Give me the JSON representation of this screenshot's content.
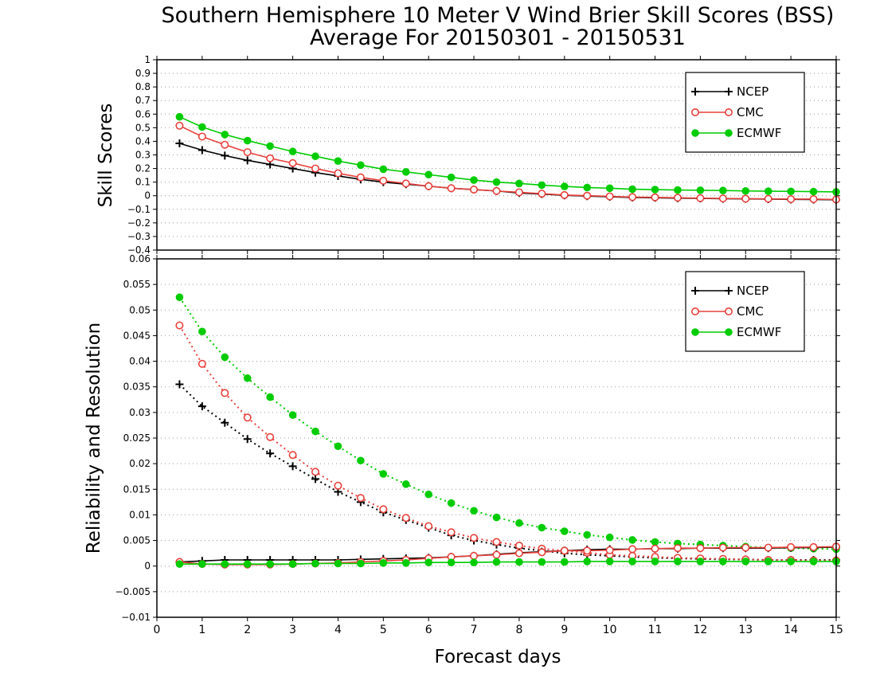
{
  "chart_data": {
    "title": "Southern Hemisphere 10 Meter V Wind Brier Skill Scores (BSS)",
    "subtitle": "Average For 20150301 - 20150531",
    "xlabel": "Forecast days",
    "xlim": [
      0,
      15
    ],
    "x_ticks": [
      "0",
      "1",
      "2",
      "3",
      "4",
      "5",
      "6",
      "7",
      "8",
      "9",
      "10",
      "11",
      "12",
      "13",
      "14",
      "15"
    ],
    "x": [
      0.5,
      1,
      1.5,
      2,
      2.5,
      3,
      3.5,
      4,
      4.5,
      5,
      5.5,
      6,
      6.5,
      7,
      7.5,
      8,
      8.5,
      9,
      9.5,
      10,
      10.5,
      11,
      11.5,
      12,
      12.5,
      13,
      13.5,
      14,
      14.5,
      15
    ],
    "colors": {
      "NCEP": "#000000",
      "CMC": "#e8413c",
      "ECMWF": "#00cc00"
    },
    "panels": [
      {
        "type": "line",
        "ylabel": "Skill Scores",
        "ylim": [
          -0.4,
          1
        ],
        "y_ticks": [
          "−0.4",
          "−0.3",
          "−0.2",
          "−0.1",
          "0",
          "0.1",
          "0.2",
          "0.3",
          "0.4",
          "0.5",
          "0.6",
          "0.7",
          "0.8",
          "0.9",
          "1"
        ],
        "legend": [
          "NCEP",
          "CMC",
          "ECMWF"
        ],
        "legend_position": "top-right",
        "grid": true,
        "series": [
          {
            "name": "NCEP",
            "marker": "plus",
            "style": "solid",
            "values": [
              0.385,
              0.335,
              0.295,
              0.26,
              0.23,
              0.2,
              0.17,
              0.145,
              0.12,
              0.1,
              0.085,
              0.07,
              0.055,
              0.045,
              0.035,
              0.02,
              0.012,
              0.003,
              -0.003,
              -0.008,
              -0.013,
              -0.015,
              -0.018,
              -0.02,
              -0.022,
              -0.023,
              -0.025,
              -0.027,
              -0.028,
              -0.03
            ]
          },
          {
            "name": "CMC",
            "marker": "open-circle",
            "style": "solid",
            "values": [
              0.515,
              0.435,
              0.375,
              0.32,
              0.275,
              0.24,
              0.2,
              0.165,
              0.135,
              0.11,
              0.09,
              0.07,
              0.055,
              0.045,
              0.035,
              0.025,
              0.015,
              0.005,
              0,
              -0.005,
              -0.01,
              -0.012,
              -0.015,
              -0.018,
              -0.02,
              -0.022,
              -0.023,
              -0.025,
              -0.025,
              -0.028
            ]
          },
          {
            "name": "ECMWF",
            "marker": "filled-circle",
            "style": "solid",
            "values": [
              0.58,
              0.505,
              0.45,
              0.405,
              0.365,
              0.325,
              0.29,
              0.255,
              0.225,
              0.195,
              0.175,
              0.155,
              0.135,
              0.115,
              0.1,
              0.09,
              0.078,
              0.068,
              0.06,
              0.055,
              0.048,
              0.045,
              0.042,
              0.04,
              0.038,
              0.035,
              0.033,
              0.032,
              0.03,
              0.028
            ]
          }
        ]
      },
      {
        "type": "line",
        "ylabel": "Reliability and Resolution",
        "ylim": [
          -0.01,
          0.06
        ],
        "y_ticks": [
          "−0.01",
          "−0.005",
          "0",
          "0.005",
          "0.01",
          "0.015",
          "0.02",
          "0.025",
          "0.03",
          "0.035",
          "0.04",
          "0.045",
          "0.05",
          "0.055",
          "0.06"
        ],
        "legend": [
          "NCEP",
          "CMC",
          "ECMWF"
        ],
        "legend_position": "top-right",
        "grid": true,
        "series": [
          {
            "name": "NCEP",
            "component": "resolution",
            "marker": "plus",
            "style": "dotted",
            "values": [
              0.0355,
              0.0312,
              0.028,
              0.0248,
              0.022,
              0.0195,
              0.017,
              0.0145,
              0.0125,
              0.0105,
              0.009,
              0.0075,
              0.006,
              0.005,
              0.0042,
              0.0035,
              0.003,
              0.0025,
              0.0022,
              0.002,
              0.0018,
              0.0016,
              0.0015,
              0.0014,
              0.0013,
              0.0013,
              0.0012,
              0.0012,
              0.0012,
              0.0012
            ]
          },
          {
            "name": "CMC",
            "component": "resolution",
            "marker": "open-circle",
            "style": "dotted",
            "values": [
              0.047,
              0.0395,
              0.0338,
              0.029,
              0.0252,
              0.0217,
              0.0184,
              0.0157,
              0.0133,
              0.0111,
              0.0094,
              0.0078,
              0.0066,
              0.0055,
              0.0047,
              0.004,
              0.0034,
              0.003,
              0.0026,
              0.0022,
              0.002,
              0.0018,
              0.0016,
              0.0015,
              0.0014,
              0.0013,
              0.0012,
              0.0012,
              0.0011,
              0.0011
            ]
          },
          {
            "name": "ECMWF",
            "component": "resolution",
            "marker": "filled-circle",
            "style": "dotted",
            "values": [
              0.0525,
              0.0458,
              0.0408,
              0.0367,
              0.033,
              0.0295,
              0.0263,
              0.0234,
              0.0206,
              0.018,
              0.016,
              0.014,
              0.0123,
              0.0108,
              0.0095,
              0.0084,
              0.0075,
              0.0068,
              0.0061,
              0.0056,
              0.0051,
              0.0047,
              0.0044,
              0.0042,
              0.004,
              0.0038,
              0.0036,
              0.0035,
              0.0034,
              0.0033
            ]
          },
          {
            "name": "NCEP",
            "component": "reliability",
            "marker": "plus",
            "style": "solid",
            "values": [
              0.0008,
              0.001,
              0.0012,
              0.0012,
              0.0012,
              0.0012,
              0.0012,
              0.0012,
              0.0013,
              0.0014,
              0.0015,
              0.0016,
              0.0018,
              0.002,
              0.0023,
              0.0026,
              0.0028,
              0.003,
              0.0032,
              0.0033,
              0.0033,
              0.0034,
              0.0034,
              0.0035,
              0.0035,
              0.0035,
              0.0035,
              0.0036,
              0.0036,
              0.0037
            ]
          },
          {
            "name": "CMC",
            "component": "reliability",
            "marker": "open-circle",
            "style": "solid",
            "values": [
              0.0008,
              0.0004,
              0.0003,
              0.0003,
              0.0003,
              0.0004,
              0.0005,
              0.0006,
              0.0008,
              0.001,
              0.0012,
              0.0015,
              0.0018,
              0.002,
              0.0022,
              0.0025,
              0.0027,
              0.003,
              0.003,
              0.0031,
              0.0033,
              0.0034,
              0.0035,
              0.0035,
              0.0036,
              0.0036,
              0.0036,
              0.0037,
              0.0037,
              0.0038
            ]
          },
          {
            "name": "ECMWF",
            "component": "reliability",
            "marker": "filled-circle",
            "style": "solid",
            "values": [
              0.0004,
              0.0004,
              0.0004,
              0.0004,
              0.0004,
              0.0004,
              0.0005,
              0.0005,
              0.0005,
              0.0006,
              0.0006,
              0.0007,
              0.0007,
              0.0007,
              0.0008,
              0.0008,
              0.0008,
              0.0008,
              0.0009,
              0.0009,
              0.0009,
              0.0009,
              0.0009,
              0.0009,
              0.0009,
              0.0009,
              0.0009,
              0.0009,
              0.0009,
              0.0009
            ]
          }
        ]
      }
    ]
  }
}
